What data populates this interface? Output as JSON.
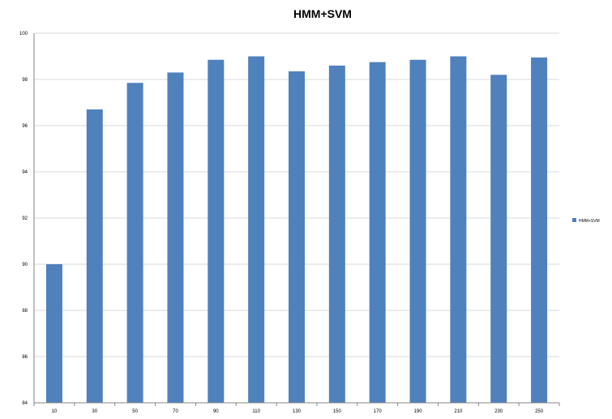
{
  "chart_data": {
    "type": "bar",
    "title": "HMM+SVM",
    "xlabel": "",
    "ylabel": "",
    "categories": [
      "10",
      "30",
      "50",
      "70",
      "90",
      "110",
      "130",
      "150",
      "170",
      "190",
      "210",
      "230",
      "250"
    ],
    "series": [
      {
        "name": "HMM+SVM",
        "values": [
          90.0,
          96.7,
          97.85,
          98.3,
          98.85,
          99.0,
          98.35,
          98.6,
          98.75,
          98.85,
          99.0,
          98.2,
          98.95
        ]
      }
    ],
    "ylim": [
      84,
      100
    ],
    "yticks": [
      "84",
      "86",
      "88",
      "90",
      "92",
      "94",
      "96",
      "98",
      "100"
    ],
    "grid": true,
    "legend_position": "right",
    "colors": {
      "bar": "#4F81BD",
      "grid": "#d9d9d9",
      "axis": "#868686",
      "text": "#000000"
    }
  }
}
